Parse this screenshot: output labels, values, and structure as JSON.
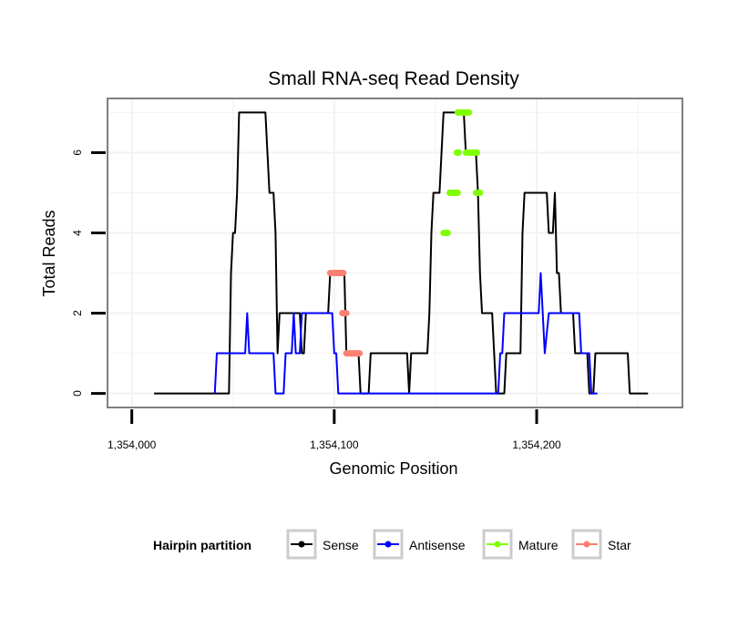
{
  "chart_data": {
    "type": "line",
    "title": "Small RNA-seq Read Density",
    "xlabel": "Genomic Position",
    "ylabel": "Total Reads",
    "xlim": [
      1353988,
      1354272
    ],
    "ylim": [
      -0.35,
      7.35
    ],
    "x_ticks": [
      1354000,
      1354100,
      1354200
    ],
    "x_tick_labels": [
      "1,354,000",
      "1,354,100",
      "1,354,200"
    ],
    "y_ticks": [
      0,
      2,
      4,
      6
    ],
    "y_tick_labels": [
      "0",
      "2",
      "4",
      "6"
    ],
    "grid": true,
    "legend": {
      "title": "Hairpin partition",
      "position": "bottom",
      "entries": [
        {
          "name": "Sense",
          "color": "#000000"
        },
        {
          "name": "Antisense",
          "color": "#0000ff"
        },
        {
          "name": "Mature",
          "color": "#7fff00"
        },
        {
          "name": "Star",
          "color": "#fa8072"
        }
      ]
    },
    "series": [
      {
        "name": "Sense",
        "color": "#000000",
        "style": "line",
        "points": [
          [
            1354011,
            0
          ],
          [
            1354048,
            0
          ],
          [
            1354049,
            3
          ],
          [
            1354050,
            4
          ],
          [
            1354051,
            4
          ],
          [
            1354052,
            5
          ],
          [
            1354053,
            7
          ],
          [
            1354066,
            7
          ],
          [
            1354067,
            6
          ],
          [
            1354068,
            5
          ],
          [
            1354070,
            5
          ],
          [
            1354071,
            4
          ],
          [
            1354072,
            1
          ],
          [
            1354073,
            2
          ],
          [
            1354083,
            2
          ],
          [
            1354084,
            1
          ],
          [
            1354085,
            1
          ],
          [
            1354086,
            2
          ],
          [
            1354097,
            2
          ],
          [
            1354098,
            3
          ],
          [
            1354105,
            3
          ],
          [
            1354106,
            1
          ],
          [
            1354112,
            1
          ],
          [
            1354113,
            0
          ],
          [
            1354117,
            0
          ],
          [
            1354118,
            1
          ],
          [
            1354136,
            1
          ],
          [
            1354137,
            0
          ],
          [
            1354138,
            1
          ],
          [
            1354146,
            1
          ],
          [
            1354147,
            2
          ],
          [
            1354148,
            4
          ],
          [
            1354149,
            5
          ],
          [
            1354152,
            5
          ],
          [
            1354153,
            6
          ],
          [
            1354154,
            7
          ],
          [
            1354164,
            7
          ],
          [
            1354165,
            6
          ],
          [
            1354170,
            6
          ],
          [
            1354171,
            5
          ],
          [
            1354172,
            3
          ],
          [
            1354173,
            2
          ],
          [
            1354178,
            2
          ],
          [
            1354179,
            1
          ],
          [
            1354180,
            0
          ],
          [
            1354184,
            0
          ],
          [
            1354185,
            1
          ],
          [
            1354192,
            1
          ],
          [
            1354193,
            4
          ],
          [
            1354194,
            5
          ],
          [
            1354205,
            5
          ],
          [
            1354206,
            4
          ],
          [
            1354208,
            4
          ],
          [
            1354209,
            5
          ],
          [
            1354210,
            3
          ],
          [
            1354211,
            3
          ],
          [
            1354212,
            2
          ],
          [
            1354218,
            2
          ],
          [
            1354219,
            1
          ],
          [
            1354225,
            1
          ],
          [
            1354226,
            0
          ],
          [
            1354228,
            0
          ],
          [
            1354229,
            1
          ],
          [
            1354245,
            1
          ],
          [
            1354246,
            0
          ],
          [
            1354255,
            0
          ]
        ]
      },
      {
        "name": "Antisense",
        "color": "#0000ff",
        "style": "line",
        "points": [
          [
            1354041,
            0
          ],
          [
            1354042,
            1
          ],
          [
            1354056,
            1
          ],
          [
            1354057,
            2
          ],
          [
            1354058,
            1
          ],
          [
            1354070,
            1
          ],
          [
            1354071,
            0
          ],
          [
            1354075,
            0
          ],
          [
            1354076,
            1
          ],
          [
            1354079,
            1
          ],
          [
            1354080,
            2
          ],
          [
            1354081,
            1
          ],
          [
            1354083,
            1
          ],
          [
            1354084,
            2
          ],
          [
            1354099,
            2
          ],
          [
            1354100,
            1
          ],
          [
            1354101,
            1
          ],
          [
            1354102,
            0
          ],
          [
            1354181,
            0
          ],
          [
            1354182,
            1
          ],
          [
            1354183,
            1
          ],
          [
            1354184,
            2
          ],
          [
            1354198,
            2
          ],
          [
            1354199,
            2
          ],
          [
            1354200,
            2
          ],
          [
            1354201,
            2
          ],
          [
            1354202,
            3
          ],
          [
            1354203,
            2
          ],
          [
            1354204,
            1
          ],
          [
            1354206,
            2
          ],
          [
            1354221,
            2
          ],
          [
            1354222,
            1
          ],
          [
            1354226,
            1
          ],
          [
            1354227,
            0
          ],
          [
            1354230,
            0
          ]
        ]
      },
      {
        "name": "Mature",
        "color": "#7fff00",
        "style": "segments",
        "segments": [
          [
            [
              1354154,
              4
            ],
            [
              1354156,
              4
            ]
          ],
          [
            [
              1354157,
              5
            ],
            [
              1354161,
              5
            ]
          ],
          [
            [
              1354160.5,
              6
            ],
            [
              1354161.5,
              6
            ]
          ],
          [
            [
              1354161,
              7
            ],
            [
              1354166.5,
              7
            ]
          ],
          [
            [
              1354165,
              6
            ],
            [
              1354170.5,
              6
            ]
          ],
          [
            [
              1354170,
              5
            ],
            [
              1354172,
              5
            ]
          ]
        ]
      },
      {
        "name": "Star",
        "color": "#fa8072",
        "style": "segments",
        "segments": [
          [
            [
              1354098,
              3
            ],
            [
              1354104.5,
              3
            ]
          ],
          [
            [
              1354104,
              2
            ],
            [
              1354106,
              2
            ]
          ],
          [
            [
              1354106,
              1
            ],
            [
              1354112.5,
              1
            ]
          ]
        ]
      }
    ]
  }
}
